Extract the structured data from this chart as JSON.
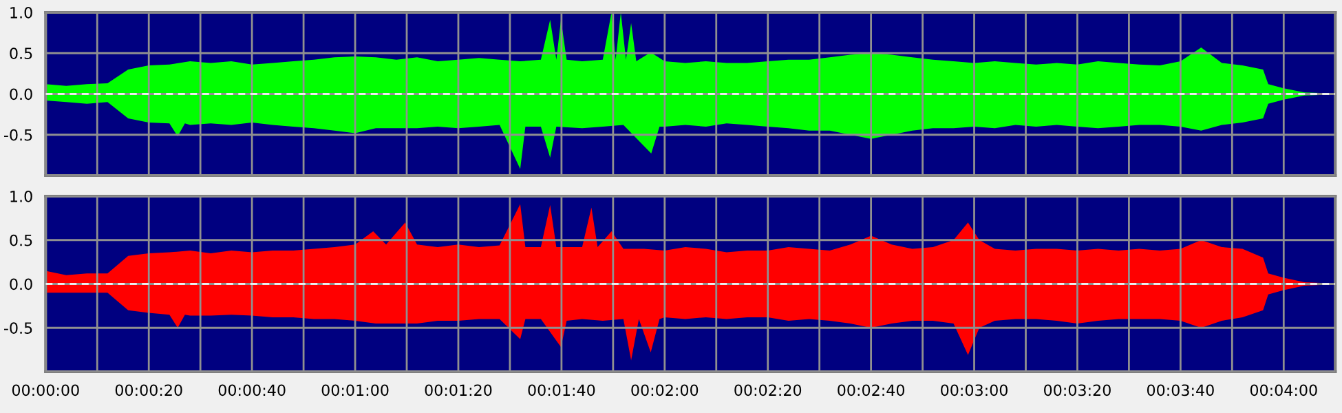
{
  "chart_data": [
    {
      "type": "area",
      "xlim": [
        0,
        250
      ],
      "ylim": [
        -1.0,
        1.0
      ],
      "yticks": [
        {
          "value": -1.0,
          "label": null
        },
        {
          "value": -0.5,
          "label": "-0.5"
        },
        {
          "value": 0.0,
          "label": "0.0"
        },
        {
          "value": 0.5,
          "label": "0.5"
        },
        {
          "value": 1.0,
          "label": "1.0"
        }
      ],
      "grid": true,
      "tick_labels": "y",
      "xticks": [
        0,
        10,
        20,
        30,
        40,
        50,
        60,
        70,
        80,
        90,
        100,
        110,
        120,
        130,
        140,
        150,
        160,
        170,
        180,
        190,
        200,
        210,
        220,
        230,
        240
      ],
      "ref_lines": [
        {
          "axis": "y",
          "value": 0.0,
          "color": "#ffffff",
          "line_style": "dashed"
        }
      ],
      "series": [
        {
          "color": "#00ff00",
          "x": [
            0,
            4,
            8,
            12,
            16,
            20,
            24,
            28,
            32,
            36,
            40,
            44,
            48,
            52,
            56,
            60,
            64,
            68,
            72,
            76,
            80,
            84,
            88,
            92,
            96,
            97.8,
            99,
            99.9,
            101,
            104,
            108,
            109.7,
            110.5,
            111.5,
            112.5,
            113.5,
            114.5,
            117.3,
            120,
            124,
            128,
            132,
            136,
            140,
            144,
            148,
            152,
            156,
            160,
            164,
            168,
            172,
            176,
            180,
            184,
            188,
            192,
            196,
            200,
            204,
            208,
            212,
            216,
            220,
            224,
            228,
            232,
            236,
            237,
            240,
            244,
            248
          ],
          "values": [
            0.12,
            0.1,
            0.12,
            0.13,
            0.3,
            0.35,
            0.36,
            0.4,
            0.38,
            0.4,
            0.36,
            0.38,
            0.4,
            0.42,
            0.45,
            0.46,
            0.45,
            0.42,
            0.45,
            0.4,
            0.42,
            0.44,
            0.42,
            0.4,
            0.42,
            0.91,
            0.42,
            0.91,
            0.42,
            0.4,
            0.42,
            1.0,
            0.42,
            1.0,
            0.42,
            0.87,
            0.4,
            0.51,
            0.4,
            0.38,
            0.4,
            0.38,
            0.38,
            0.4,
            0.42,
            0.42,
            0.45,
            0.48,
            0.5,
            0.48,
            0.45,
            0.42,
            0.4,
            0.38,
            0.4,
            0.38,
            0.36,
            0.38,
            0.36,
            0.4,
            0.38,
            0.36,
            0.35,
            0.4,
            0.57,
            0.38,
            0.35,
            0.3,
            0.12,
            0.07,
            0.02,
            0.01
          ]
        },
        {
          "color": "#00ff00",
          "x": [
            0,
            4,
            8,
            12,
            16,
            20,
            24,
            25.6,
            27,
            28,
            32,
            36,
            40,
            44,
            48,
            52,
            56,
            60,
            64,
            68,
            72,
            76,
            80,
            84,
            88,
            92,
            93,
            96,
            97.8,
            99,
            104,
            108,
            112,
            117.4,
            119,
            120,
            124,
            128,
            132,
            136,
            140,
            144,
            148,
            152,
            156,
            160,
            164,
            168,
            172,
            176,
            180,
            184,
            188,
            192,
            196,
            200,
            204,
            208,
            212,
            216,
            220,
            224,
            228,
            232,
            236,
            237,
            240,
            244,
            248
          ],
          "values": [
            -0.08,
            -0.1,
            -0.12,
            -0.1,
            -0.3,
            -0.35,
            -0.36,
            -0.52,
            -0.36,
            -0.38,
            -0.36,
            -0.38,
            -0.35,
            -0.38,
            -0.4,
            -0.42,
            -0.45,
            -0.48,
            -0.42,
            -0.42,
            -0.42,
            -0.4,
            -0.42,
            -0.4,
            -0.38,
            -0.92,
            -0.4,
            -0.4,
            -0.78,
            -0.4,
            -0.42,
            -0.4,
            -0.38,
            -0.73,
            -0.4,
            -0.4,
            -0.38,
            -0.4,
            -0.36,
            -0.38,
            -0.4,
            -0.42,
            -0.45,
            -0.45,
            -0.5,
            -0.55,
            -0.5,
            -0.45,
            -0.42,
            -0.42,
            -0.4,
            -0.42,
            -0.38,
            -0.4,
            -0.38,
            -0.4,
            -0.42,
            -0.4,
            -0.38,
            -0.38,
            -0.4,
            -0.45,
            -0.38,
            -0.35,
            -0.3,
            -0.12,
            -0.07,
            -0.02,
            -0.01
          ]
        }
      ]
    },
    {
      "type": "area",
      "xlim": [
        0,
        250
      ],
      "ylim": [
        -1.0,
        1.0
      ],
      "yticks": [
        {
          "value": -1.0,
          "label": null
        },
        -0.5,
        {
          "value": 0.0,
          "label": "0.0"
        },
        0.5,
        {
          "value": 1.0,
          "label": "1.0"
        }
      ],
      "grid": true,
      "xticks": [
        {
          "value": 0,
          "label": "00:00:00"
        },
        {
          "value": 10,
          "label": null
        },
        {
          "value": 20,
          "label": "00:00:20"
        },
        {
          "value": 30,
          "label": null
        },
        {
          "value": 40,
          "label": "00:00:40"
        },
        {
          "value": 50,
          "label": null
        },
        {
          "value": 60,
          "label": "00:01:00"
        },
        {
          "value": 70,
          "label": null
        },
        {
          "value": 80,
          "label": "00:01:20"
        },
        {
          "value": 90,
          "label": null
        },
        {
          "value": 100,
          "label": "00:01:40"
        },
        {
          "value": 110,
          "label": null
        },
        {
          "value": 120,
          "label": "00:02:00"
        },
        {
          "value": 130,
          "label": null
        },
        {
          "value": 140,
          "label": "00:02:20"
        },
        {
          "value": 150,
          "label": null
        },
        {
          "value": 160,
          "label": "00:02:40"
        },
        {
          "value": 170,
          "label": null
        },
        {
          "value": 180,
          "label": "00:03:00"
        },
        {
          "value": 190,
          "label": null
        },
        {
          "value": 200,
          "label": "00:03:20"
        },
        {
          "value": 210,
          "label": null
        },
        {
          "value": 220,
          "label": "00:03:40"
        },
        {
          "value": 230,
          "label": null
        },
        {
          "value": 240,
          "label": "00:04:00"
        }
      ],
      "ref_lines": [
        {
          "axis": "y",
          "value": 0.0,
          "color": "#ffffff",
          "line_style": "dashed"
        }
      ],
      "series": [
        {
          "color": "#ff0000",
          "x": [
            0,
            4,
            8,
            12,
            16,
            20,
            24,
            28,
            32,
            36,
            40,
            44,
            48,
            52,
            56,
            60,
            63.5,
            66,
            69.7,
            72,
            76,
            80,
            84,
            88,
            92,
            93,
            96,
            97.8,
            99,
            104,
            105.8,
            107,
            109.7,
            112,
            116,
            120,
            124,
            128,
            132,
            136,
            140,
            144,
            148,
            152,
            156,
            160,
            164,
            168,
            172,
            176,
            178.8,
            181,
            184,
            188,
            192,
            196,
            200,
            204,
            208,
            212,
            216,
            220,
            224,
            228,
            232,
            236,
            237,
            240,
            244,
            248
          ],
          "values": [
            0.15,
            0.1,
            0.12,
            0.12,
            0.32,
            0.35,
            0.36,
            0.38,
            0.35,
            0.38,
            0.36,
            0.38,
            0.38,
            0.4,
            0.42,
            0.45,
            0.6,
            0.45,
            0.7,
            0.45,
            0.42,
            0.45,
            0.42,
            0.44,
            0.91,
            0.42,
            0.42,
            0.9,
            0.42,
            0.42,
            0.87,
            0.42,
            0.6,
            0.4,
            0.4,
            0.38,
            0.42,
            0.4,
            0.36,
            0.38,
            0.38,
            0.42,
            0.4,
            0.38,
            0.45,
            0.55,
            0.45,
            0.4,
            0.42,
            0.5,
            0.7,
            0.5,
            0.4,
            0.38,
            0.4,
            0.4,
            0.38,
            0.4,
            0.38,
            0.4,
            0.38,
            0.4,
            0.5,
            0.42,
            0.4,
            0.3,
            0.12,
            0.07,
            0.02,
            0.01
          ]
        },
        {
          "color": "#ff0000",
          "x": [
            0,
            4,
            8,
            12,
            16,
            20,
            24,
            25.6,
            27,
            28,
            32,
            36,
            40,
            44,
            48,
            52,
            56,
            60,
            64,
            68,
            72,
            76,
            80,
            84,
            88,
            92,
            93,
            96,
            99.9,
            101,
            104,
            108,
            112,
            113.5,
            115,
            117.3,
            119,
            120,
            124,
            128,
            132,
            136,
            140,
            144,
            148,
            152,
            156,
            160,
            164,
            168,
            172,
            176,
            178.8,
            181,
            184,
            188,
            192,
            196,
            200,
            204,
            208,
            212,
            216,
            220,
            224,
            228,
            232,
            236,
            237,
            240,
            244,
            248
          ],
          "values": [
            -0.1,
            -0.1,
            -0.1,
            -0.1,
            -0.3,
            -0.33,
            -0.35,
            -0.5,
            -0.35,
            -0.36,
            -0.36,
            -0.35,
            -0.36,
            -0.38,
            -0.38,
            -0.4,
            -0.4,
            -0.42,
            -0.45,
            -0.45,
            -0.45,
            -0.42,
            -0.42,
            -0.4,
            -0.4,
            -0.63,
            -0.4,
            -0.4,
            -0.72,
            -0.42,
            -0.4,
            -0.42,
            -0.4,
            -0.87,
            -0.4,
            -0.78,
            -0.4,
            -0.38,
            -0.4,
            -0.38,
            -0.4,
            -0.38,
            -0.38,
            -0.42,
            -0.4,
            -0.42,
            -0.45,
            -0.5,
            -0.45,
            -0.42,
            -0.42,
            -0.45,
            -0.81,
            -0.5,
            -0.42,
            -0.4,
            -0.4,
            -0.42,
            -0.45,
            -0.42,
            -0.4,
            -0.4,
            -0.4,
            -0.42,
            -0.5,
            -0.42,
            -0.38,
            -0.3,
            -0.12,
            -0.07,
            -0.02,
            -0.01
          ]
        }
      ]
    }
  ]
}
